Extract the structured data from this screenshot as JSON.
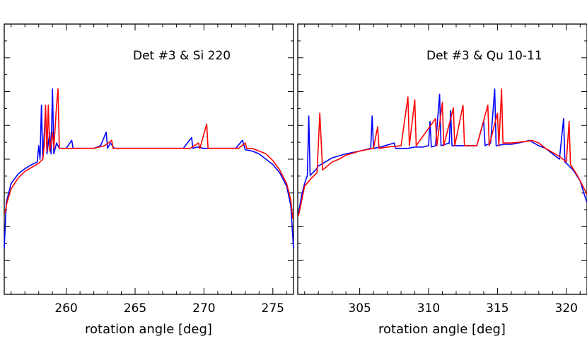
{
  "chart_data": [
    {
      "type": "line",
      "title": "Det #3 & Si 220",
      "xlabel": "rotation angle [deg]",
      "ylabel": "",
      "xlim": [
        255.5,
        276.5
      ],
      "ylim": [
        0,
        100
      ],
      "xticks": [
        260,
        265,
        270,
        275
      ],
      "xtick_labels": [
        "260",
        "265",
        "270",
        "275"
      ],
      "grid": false,
      "series": [
        {
          "color": "#0000ff",
          "points": [
            [
              255.5,
              17
            ],
            [
              255.65,
              34
            ],
            [
              256,
              41
            ],
            [
              256.5,
              44.5
            ],
            [
              257,
              46.5
            ],
            [
              257.5,
              48
            ],
            [
              257.9,
              49
            ],
            [
              258,
              55
            ],
            [
              258.1,
              50
            ],
            [
              258.2,
              70
            ],
            [
              258.3,
              50
            ],
            [
              258.5,
              68
            ],
            [
              258.6,
              52
            ],
            [
              258.8,
              60
            ],
            [
              258.9,
              52
            ],
            [
              259,
              76
            ],
            [
              259.1,
              52
            ],
            [
              259.3,
              56
            ],
            [
              259.5,
              54
            ],
            [
              260,
              54
            ],
            [
              260.4,
              57
            ],
            [
              260.5,
              54
            ],
            [
              261,
              54
            ],
            [
              262,
              54
            ],
            [
              262.5,
              55
            ],
            [
              262.9,
              60
            ],
            [
              263,
              54
            ],
            [
              263.2,
              56
            ],
            [
              263.5,
              54
            ],
            [
              264,
              54
            ],
            [
              265,
              54
            ],
            [
              266,
              54
            ],
            [
              267,
              54
            ],
            [
              268,
              54
            ],
            [
              268.5,
              54
            ],
            [
              269.1,
              58
            ],
            [
              269.2,
              54
            ],
            [
              269.5,
              54.5
            ],
            [
              270,
              54
            ],
            [
              271,
              54
            ],
            [
              272,
              54
            ],
            [
              272.3,
              54
            ],
            [
              272.8,
              57
            ],
            [
              273,
              53.5
            ],
            [
              273.5,
              53
            ],
            [
              274,
              52
            ],
            [
              274.5,
              50
            ],
            [
              275,
              48
            ],
            [
              275.5,
              45
            ],
            [
              276,
              40
            ],
            [
              276.3,
              33
            ],
            [
              276.5,
              17
            ]
          ]
        },
        {
          "color": "#ff0000",
          "points": [
            [
              255.55,
              30
            ],
            [
              255.7,
              34
            ],
            [
              256,
              39
            ],
            [
              256.5,
              43
            ],
            [
              257,
              45.5
            ],
            [
              257.5,
              47
            ],
            [
              258,
              48.5
            ],
            [
              258.3,
              50
            ],
            [
              258.4,
              55
            ],
            [
              258.5,
              70
            ],
            [
              258.6,
              53
            ],
            [
              258.7,
              70
            ],
            [
              258.8,
              53
            ],
            [
              259,
              60
            ],
            [
              259.1,
              54
            ],
            [
              259.3,
              70
            ],
            [
              259.4,
              76
            ],
            [
              259.5,
              54
            ],
            [
              260,
              54
            ],
            [
              261,
              54
            ],
            [
              262,
              54
            ],
            [
              262.8,
              55
            ],
            [
              263.3,
              57
            ],
            [
              263.4,
              54
            ],
            [
              264,
              54
            ],
            [
              265,
              54
            ],
            [
              266,
              54
            ],
            [
              267,
              54
            ],
            [
              268,
              54
            ],
            [
              269,
              54
            ],
            [
              269.6,
              56
            ],
            [
              269.7,
              54
            ],
            [
              270.2,
              63
            ],
            [
              270.3,
              54
            ],
            [
              271,
              54
            ],
            [
              272,
              54
            ],
            [
              272.5,
              54
            ],
            [
              273,
              56
            ],
            [
              273.1,
              54
            ],
            [
              273.5,
              54
            ],
            [
              274,
              53
            ],
            [
              274.5,
              52
            ],
            [
              275,
              49.5
            ],
            [
              275.5,
              46
            ],
            [
              276,
              41
            ],
            [
              276.3,
              35
            ],
            [
              276.45,
              28
            ]
          ]
        }
      ]
    },
    {
      "type": "line",
      "title": "Det #3 & Qu 10-11",
      "xlabel": "rotation angle [deg]",
      "ylabel": "",
      "xlim": [
        300.5,
        321.5
      ],
      "ylim": [
        0,
        100
      ],
      "xticks": [
        305,
        310,
        315,
        320
      ],
      "xtick_labels": [
        "305",
        "310",
        "315",
        "320"
      ],
      "grid": false,
      "series": [
        {
          "color": "#0000ff",
          "points": [
            [
              300.55,
              30
            ],
            [
              300.8,
              37
            ],
            [
              301,
              41
            ],
            [
              301.2,
              44
            ],
            [
              301.3,
              66
            ],
            [
              301.4,
              44
            ],
            [
              301.8,
              46
            ],
            [
              302,
              47.5
            ],
            [
              302.5,
              49
            ],
            [
              303,
              50.5
            ],
            [
              304,
              52
            ],
            [
              305,
              53
            ],
            [
              305.8,
              54
            ],
            [
              305.9,
              66
            ],
            [
              306,
              54
            ],
            [
              306.5,
              54.5
            ],
            [
              307.5,
              56
            ],
            [
              307.6,
              54
            ],
            [
              308.5,
              54
            ],
            [
              309,
              54.5
            ],
            [
              309.6,
              54.5
            ],
            [
              310,
              55
            ],
            [
              310.1,
              64
            ],
            [
              310.2,
              54.5
            ],
            [
              310.5,
              55
            ],
            [
              310.8,
              74
            ],
            [
              310.9,
              55
            ],
            [
              311.5,
              56
            ],
            [
              311.6,
              68
            ],
            [
              311.7,
              55
            ],
            [
              312.5,
              55
            ],
            [
              313.5,
              55
            ],
            [
              314,
              64
            ],
            [
              314.1,
              55
            ],
            [
              314.5,
              56
            ],
            [
              314.8,
              76
            ],
            [
              314.9,
              55
            ],
            [
              315.5,
              55.5
            ],
            [
              316,
              55.5
            ],
            [
              317,
              56.5
            ],
            [
              317.3,
              57
            ],
            [
              318,
              55
            ],
            [
              318.5,
              54
            ],
            [
              319,
              52
            ],
            [
              319.5,
              50
            ],
            [
              319.8,
              65
            ],
            [
              319.9,
              49
            ],
            [
              320.5,
              46
            ],
            [
              321,
              42
            ],
            [
              321.3,
              37
            ],
            [
              321.5,
              34
            ]
          ]
        },
        {
          "color": "#ff0000",
          "points": [
            [
              300.55,
              29
            ],
            [
              300.8,
              35
            ],
            [
              301,
              40
            ],
            [
              301.5,
              43
            ],
            [
              301.9,
              45
            ],
            [
              302.1,
              67
            ],
            [
              302.3,
              46
            ],
            [
              303,
              49
            ],
            [
              303.5,
              50
            ],
            [
              304,
              51.5
            ],
            [
              305,
              53
            ],
            [
              306,
              54
            ],
            [
              306.3,
              62
            ],
            [
              306.4,
              54
            ],
            [
              307,
              54.5
            ],
            [
              308,
              55
            ],
            [
              308.5,
              73
            ],
            [
              308.6,
              55
            ],
            [
              309,
              72
            ],
            [
              309.1,
              55
            ],
            [
              310.5,
              65
            ],
            [
              310.6,
              55
            ],
            [
              311,
              71
            ],
            [
              311.1,
              55
            ],
            [
              311.8,
              69
            ],
            [
              311.9,
              55
            ],
            [
              312.5,
              70
            ],
            [
              312.6,
              55
            ],
            [
              313.5,
              55
            ],
            [
              314.3,
              70
            ],
            [
              314.4,
              55
            ],
            [
              315,
              67
            ],
            [
              315.1,
              55
            ],
            [
              315.3,
              76
            ],
            [
              315.4,
              56
            ],
            [
              316,
              56
            ],
            [
              317,
              56.5
            ],
            [
              317.5,
              57
            ],
            [
              318,
              56
            ],
            [
              318.5,
              54
            ],
            [
              319,
              52.5
            ],
            [
              319.5,
              51
            ],
            [
              320,
              49
            ],
            [
              320.2,
              64
            ],
            [
              320.3,
              48
            ],
            [
              320.8,
              44
            ],
            [
              321.2,
              40
            ],
            [
              321.5,
              37
            ]
          ]
        }
      ]
    }
  ]
}
